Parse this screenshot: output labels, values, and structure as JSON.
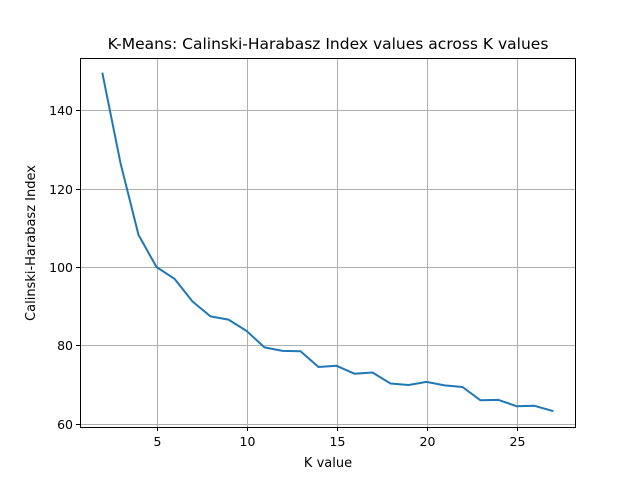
{
  "chart_data": {
    "type": "line",
    "title": "K-Means: Calinski-Harabasz Index values across K values",
    "xlabel": "K value",
    "ylabel": "Calinski-Harabasz Index",
    "xlim": [
      0.75,
      28.25
    ],
    "ylim": [
      59.2,
      153.3
    ],
    "xticks": [
      5,
      10,
      15,
      20,
      25
    ],
    "yticks": [
      60,
      80,
      100,
      120,
      140
    ],
    "grid": true,
    "color": "#1f77b4",
    "series": [
      {
        "x": [
          2,
          3,
          4,
          5,
          6,
          7,
          8,
          9,
          10,
          11,
          12,
          13,
          14,
          15,
          16,
          17,
          18,
          19,
          20,
          21,
          22,
          23,
          24,
          25,
          26,
          27
        ],
        "values": [
          149.3,
          126.5,
          108.2,
          100.0,
          97.0,
          91.2,
          87.4,
          86.6,
          83.7,
          79.5,
          78.6,
          78.5,
          74.5,
          74.8,
          72.8,
          73.1,
          70.3,
          69.9,
          70.7,
          69.8,
          69.4,
          66.0,
          66.1,
          64.5,
          64.6,
          63.3
        ]
      }
    ]
  }
}
